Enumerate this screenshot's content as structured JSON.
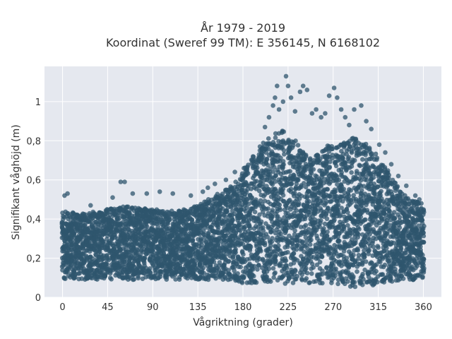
{
  "chart_data": {
    "type": "scatter",
    "title_line1": "År 1979 - 2019",
    "title_line2": "Koordinat (Sweref 99 TM): E 356145, N 6168102",
    "xlabel": "Vågriktning (grader)",
    "ylabel": "Signifikant våghöjd (m)",
    "xlim": [
      -18,
      378
    ],
    "ylim": [
      0,
      1.18
    ],
    "x_ticks": [
      0,
      45,
      90,
      135,
      180,
      225,
      270,
      315,
      360
    ],
    "y_ticks": [
      0,
      0.2,
      0.4,
      0.6,
      0.8,
      1
    ],
    "y_tick_labels": [
      "0",
      "0,2",
      "0,4",
      "0,6",
      "0,8",
      "1"
    ],
    "marker_color": "#2f566e",
    "plot_bg": "#e5e8ef",
    "grid": true,
    "envelope": {
      "x": [
        0,
        20,
        45,
        60,
        90,
        115,
        135,
        155,
        170,
        180,
        190,
        200,
        210,
        220,
        225,
        235,
        245,
        255,
        265,
        270,
        280,
        290,
        300,
        310,
        320,
        330,
        340,
        350,
        360
      ],
      "y_low": [
        0.09,
        0.09,
        0.09,
        0.09,
        0.09,
        0.09,
        0.09,
        0.09,
        0.08,
        0.07,
        0.07,
        0.07,
        0.07,
        0.07,
        0.07,
        0.07,
        0.07,
        0.07,
        0.07,
        0.07,
        0.06,
        0.05,
        0.06,
        0.06,
        0.07,
        0.08,
        0.08,
        0.09,
        0.09
      ],
      "y_high": [
        0.44,
        0.43,
        0.45,
        0.47,
        0.45,
        0.44,
        0.47,
        0.53,
        0.58,
        0.64,
        0.72,
        0.79,
        0.84,
        0.86,
        0.84,
        0.79,
        0.72,
        0.73,
        0.78,
        0.77,
        0.79,
        0.82,
        0.8,
        0.75,
        0.68,
        0.6,
        0.53,
        0.5,
        0.47
      ]
    },
    "outliers": [
      {
        "x": 2,
        "y": 0.52
      },
      {
        "x": 5,
        "y": 0.53
      },
      {
        "x": 28,
        "y": 0.47
      },
      {
        "x": 50,
        "y": 0.51
      },
      {
        "x": 58,
        "y": 0.59
      },
      {
        "x": 62,
        "y": 0.59
      },
      {
        "x": 70,
        "y": 0.53
      },
      {
        "x": 84,
        "y": 0.53
      },
      {
        "x": 97,
        "y": 0.54
      },
      {
        "x": 110,
        "y": 0.53
      },
      {
        "x": 128,
        "y": 0.52
      },
      {
        "x": 140,
        "y": 0.54
      },
      {
        "x": 145,
        "y": 0.56
      },
      {
        "x": 152,
        "y": 0.58
      },
      {
        "x": 163,
        "y": 0.6
      },
      {
        "x": 172,
        "y": 0.64
      },
      {
        "x": 181,
        "y": 0.66
      },
      {
        "x": 190,
        "y": 0.72
      },
      {
        "x": 197,
        "y": 0.77
      },
      {
        "x": 202,
        "y": 0.87
      },
      {
        "x": 206,
        "y": 0.92
      },
      {
        "x": 210,
        "y": 0.98
      },
      {
        "x": 212,
        "y": 1.02
      },
      {
        "x": 214,
        "y": 1.08
      },
      {
        "x": 216,
        "y": 0.96
      },
      {
        "x": 220,
        "y": 1.0
      },
      {
        "x": 223,
        "y": 1.13
      },
      {
        "x": 225,
        "y": 1.08
      },
      {
        "x": 228,
        "y": 1.02
      },
      {
        "x": 232,
        "y": 0.95
      },
      {
        "x": 237,
        "y": 1.05
      },
      {
        "x": 240,
        "y": 1.08
      },
      {
        "x": 244,
        "y": 1.06
      },
      {
        "x": 249,
        "y": 0.94
      },
      {
        "x": 253,
        "y": 0.96
      },
      {
        "x": 258,
        "y": 0.92
      },
      {
        "x": 262,
        "y": 0.94
      },
      {
        "x": 266,
        "y": 1.03
      },
      {
        "x": 271,
        "y": 1.07
      },
      {
        "x": 274,
        "y": 1.02
      },
      {
        "x": 278,
        "y": 0.96
      },
      {
        "x": 282,
        "y": 0.92
      },
      {
        "x": 286,
        "y": 0.88
      },
      {
        "x": 291,
        "y": 0.96
      },
      {
        "x": 298,
        "y": 0.98
      },
      {
        "x": 303,
        "y": 0.9
      },
      {
        "x": 308,
        "y": 0.86
      },
      {
        "x": 316,
        "y": 0.78
      },
      {
        "x": 322,
        "y": 0.74
      },
      {
        "x": 328,
        "y": 0.68
      },
      {
        "x": 335,
        "y": 0.62
      },
      {
        "x": 343,
        "y": 0.57
      },
      {
        "x": 352,
        "y": 0.52
      },
      {
        "x": 356,
        "y": 0.5
      },
      {
        "x": 358,
        "y": 0.48
      }
    ]
  }
}
